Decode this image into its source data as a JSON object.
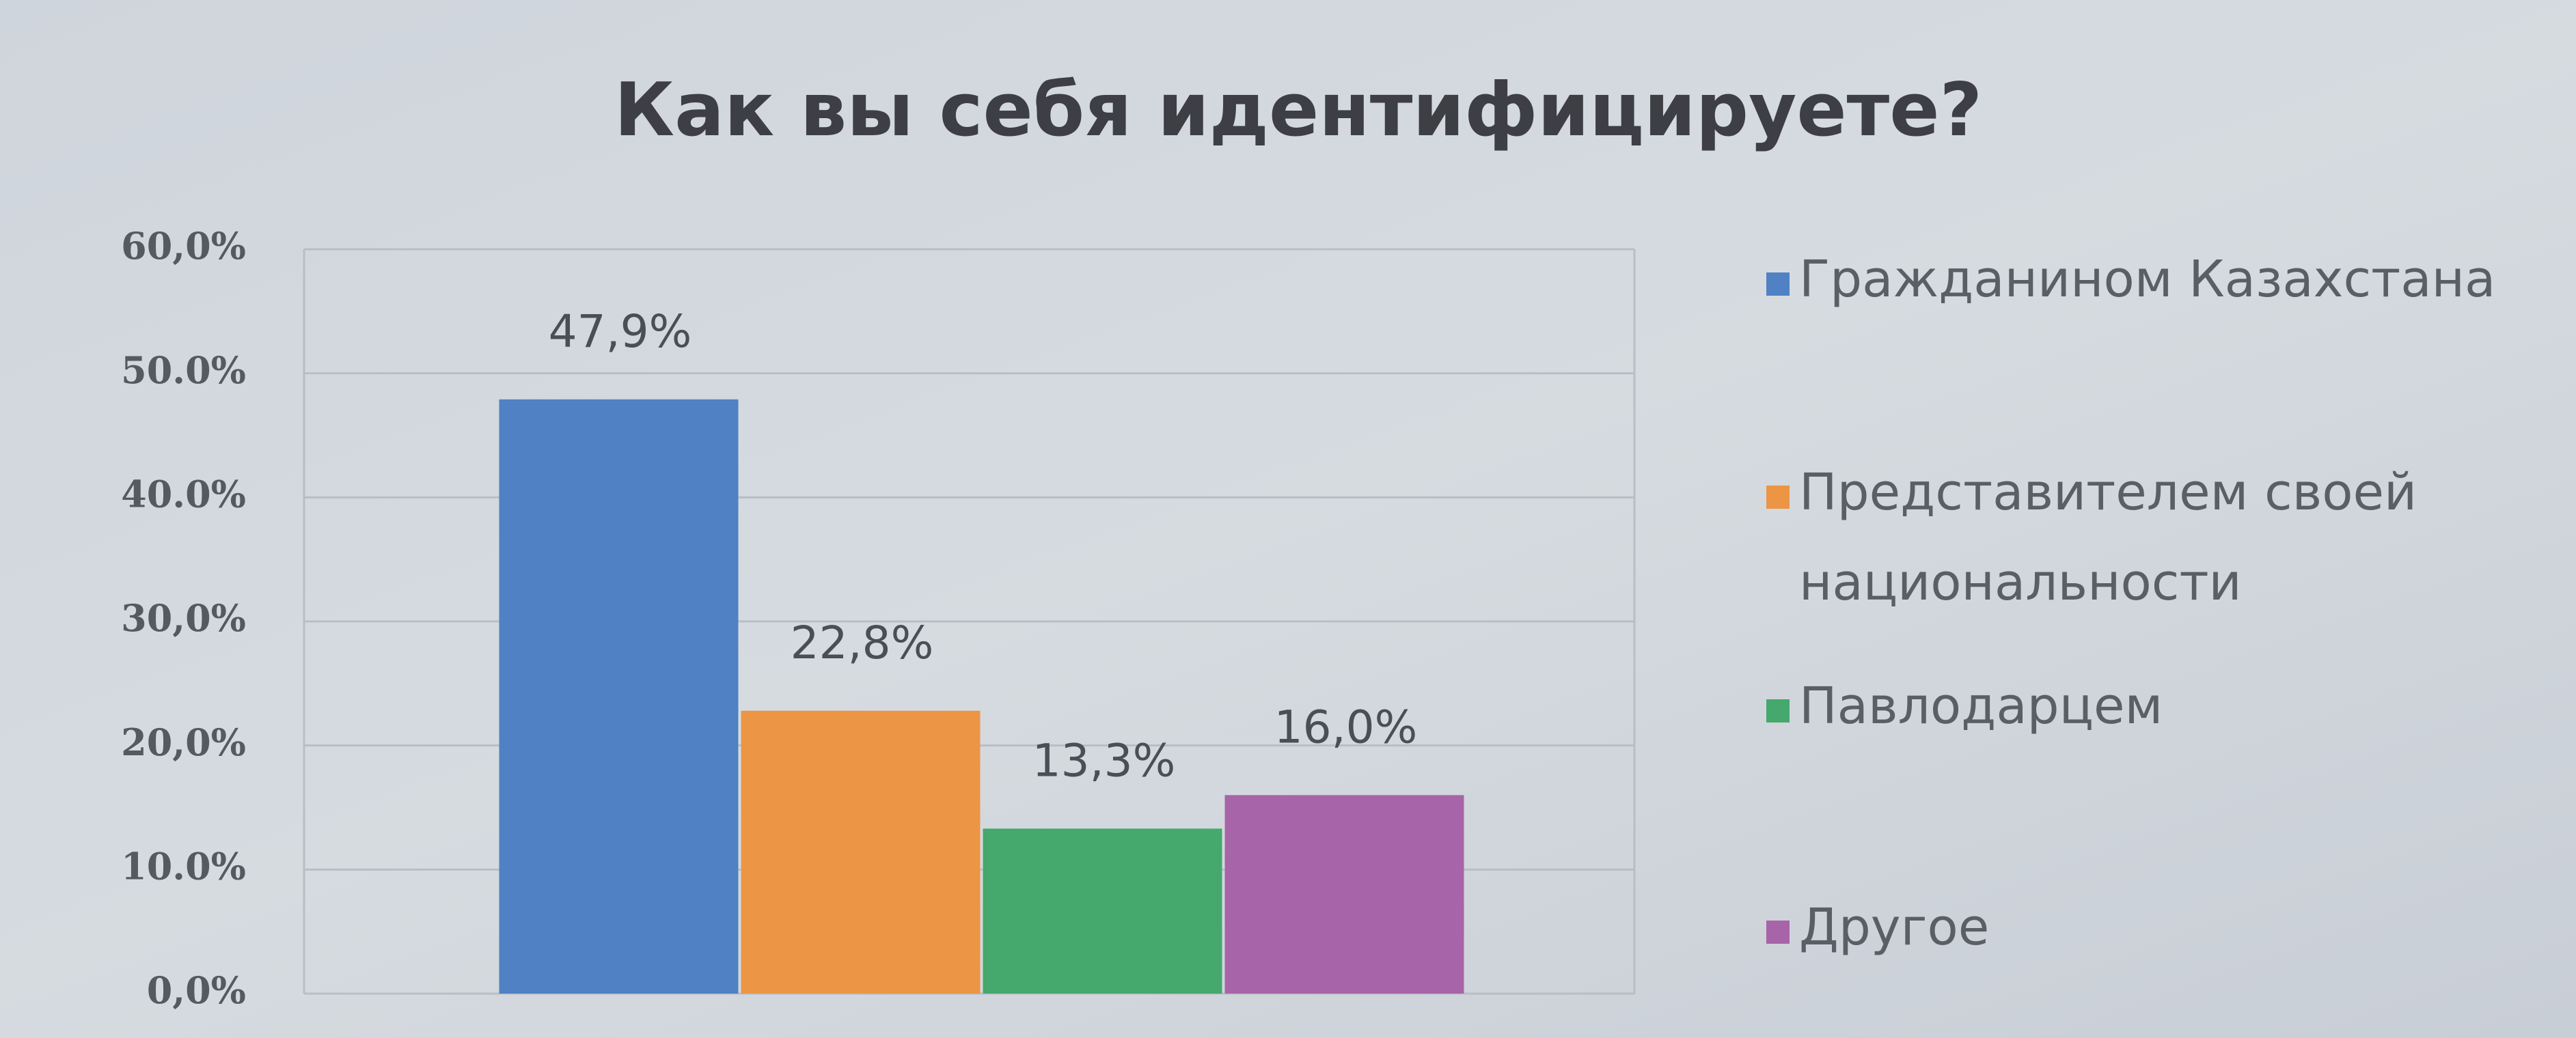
{
  "chart_data": {
    "type": "bar",
    "title": "Как вы себя идентифицируете?",
    "series": [
      {
        "name": "Гражданином Казахстана",
        "color": "#4f81c4",
        "values": [
          47.9
        ],
        "value_labels": [
          "47,9%"
        ]
      },
      {
        "name": "Представителем своей национальности",
        "color": "#ec9545",
        "values": [
          22.8
        ],
        "value_labels": [
          "22,8%"
        ]
      },
      {
        "name": "Павлодарцем",
        "color": "#45a86c",
        "values": [
          13.3
        ],
        "value_labels": [
          "13,3%"
        ]
      },
      {
        "name": "Другое",
        "color": "#a864a8",
        "values": [
          16.0
        ],
        "value_labels": [
          "16,0%"
        ]
      }
    ],
    "ylim": [
      0,
      60
    ],
    "yticks": [
      {
        "value": 0,
        "label": "0,0%"
      },
      {
        "value": 10,
        "label": "10.0%"
      },
      {
        "value": 20,
        "label": "20,0%"
      },
      {
        "value": 30,
        "label": "30,0%"
      },
      {
        "value": 40,
        "label": "40.0%"
      },
      {
        "value": 50,
        "label": "50.0%"
      },
      {
        "value": 60,
        "label": "60,0%"
      }
    ],
    "grid": true
  }
}
